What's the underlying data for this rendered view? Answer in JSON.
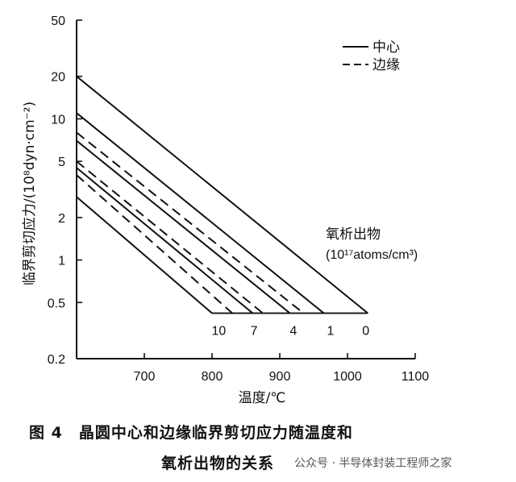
{
  "chart_data": {
    "type": "line",
    "xlabel": "温度/℃",
    "ylabel": "临界剪切应力/(10⁸dyn·cm⁻²)",
    "x_ticks": [
      700,
      800,
      900,
      1000,
      1100
    ],
    "xlim": [
      600,
      1100
    ],
    "y_scale": "log",
    "y_ticks": [
      0.2,
      0.5,
      1,
      2,
      5,
      10,
      20,
      50
    ],
    "ylim": [
      0.2,
      50
    ],
    "legend": {
      "placement": "top-right",
      "entries": [
        {
          "label": "中心",
          "style": "solid"
        },
        {
          "label": "边缘",
          "style": "dashed"
        }
      ]
    },
    "annotation_title": "氧析出物",
    "annotation_unit": "(10¹⁷atoms/cm³)",
    "series": [
      {
        "name": "中心",
        "oxygen_precipitate": "0",
        "style": "solid",
        "x": [
          600,
          1030
        ],
        "y": [
          20,
          0.42
        ]
      },
      {
        "name": "中心",
        "oxygen_precipitate": "1",
        "style": "solid",
        "x": [
          600,
          965
        ],
        "y": [
          11,
          0.42
        ]
      },
      {
        "name": "边缘",
        "oxygen_precipitate": "1",
        "style": "dashed",
        "x": [
          600,
          935
        ],
        "y": [
          8,
          0.42
        ]
      },
      {
        "name": "中心",
        "oxygen_precipitate": "4",
        "style": "solid",
        "x": [
          600,
          915
        ],
        "y": [
          7,
          0.42
        ]
      },
      {
        "name": "边缘",
        "oxygen_precipitate": "4",
        "style": "dashed",
        "x": [
          600,
          875
        ],
        "y": [
          5,
          0.42
        ]
      },
      {
        "name": "中心",
        "oxygen_precipitate": "7",
        "style": "solid",
        "x": [
          600,
          860
        ],
        "y": [
          4.5,
          0.42
        ]
      },
      {
        "name": "边缘",
        "oxygen_precipitate": "7",
        "style": "dashed",
        "x": [
          600,
          830
        ],
        "y": [
          4,
          0.42
        ]
      },
      {
        "name": "中心",
        "oxygen_precipitate": "10",
        "style": "solid",
        "x": [
          600,
          800
        ],
        "y": [
          2.8,
          0.42
        ]
      }
    ],
    "end_labels": [
      "10",
      "7",
      "4",
      "1",
      "0"
    ],
    "end_label_x": [
      810,
      862,
      920,
      975,
      1027
    ],
    "grid": false
  },
  "caption": {
    "line1": "图 4　晶圆中心和边缘临界剪切应力随温度和",
    "line2": "氧析出物的关系"
  },
  "watermark": "公众号 · 半导体封装工程师之家"
}
